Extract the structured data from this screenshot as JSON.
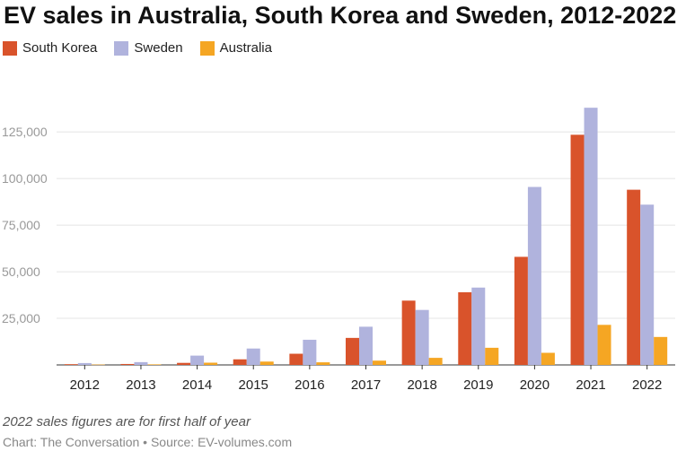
{
  "chart_data": {
    "type": "bar",
    "title": "EV sales in Australia, South Korea and Sweden, 2012-2022",
    "categories": [
      "2012",
      "2013",
      "2014",
      "2015",
      "2016",
      "2017",
      "2018",
      "2019",
      "2020",
      "2021",
      "2022"
    ],
    "series": [
      {
        "name": "South Korea",
        "color": "#d9532b",
        "values": [
          400,
          500,
          1100,
          3000,
          6000,
          14500,
          34500,
          39000,
          58000,
          123500,
          94000
        ]
      },
      {
        "name": "Sweden",
        "color": "#b0b3dd",
        "values": [
          1000,
          1500,
          5000,
          8800,
          13500,
          20500,
          29500,
          41500,
          95500,
          138000,
          86000
        ]
      },
      {
        "name": "Australia",
        "color": "#f5a623",
        "values": [
          200,
          300,
          1200,
          1800,
          1400,
          2300,
          3800,
          9200,
          6500,
          21500,
          15000
        ]
      }
    ],
    "yticks": [
      "25,000",
      "50,000",
      "75,000",
      "100,000",
      "125,000"
    ],
    "ytick_values": [
      25000,
      50000,
      75000,
      100000,
      125000
    ],
    "ylim": [
      0,
      140000
    ],
    "xlabel": "",
    "ylabel": "",
    "grid": true,
    "legend_position": "top-left"
  },
  "note": "2022 sales figures are for first half of year",
  "source": "Chart: The Conversation • Source: EV-volumes.com"
}
